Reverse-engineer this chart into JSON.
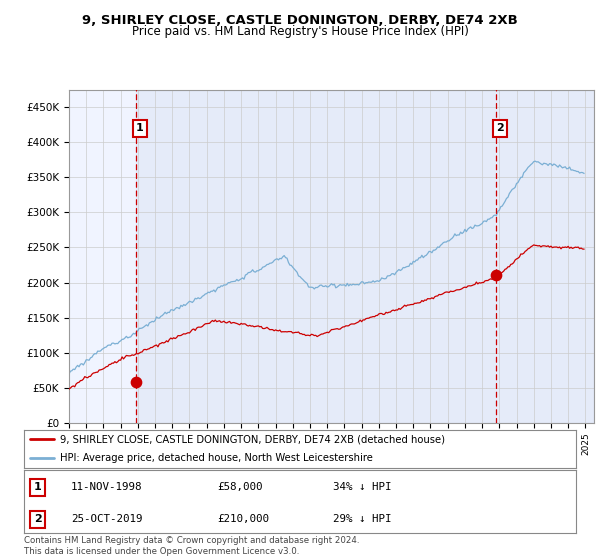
{
  "title1": "9, SHIRLEY CLOSE, CASTLE DONINGTON, DERBY, DE74 2XB",
  "title2": "Price paid vs. HM Land Registry's House Price Index (HPI)",
  "ylim": [
    0,
    475000
  ],
  "yticks": [
    0,
    50000,
    100000,
    150000,
    200000,
    250000,
    300000,
    350000,
    400000,
    450000
  ],
  "ytick_labels": [
    "£0",
    "£50K",
    "£100K",
    "£150K",
    "£200K",
    "£250K",
    "£300K",
    "£350K",
    "£400K",
    "£450K"
  ],
  "sale1_year": 1998.875,
  "sale1_price": 58000,
  "sale2_year": 2019.79,
  "sale2_price": 210000,
  "property_color": "#cc0000",
  "hpi_color": "#7bafd4",
  "vline_color": "#cc0000",
  "shade_color": "#ddeeff",
  "legend_property": "9, SHIRLEY CLOSE, CASTLE DONINGTON, DERBY, DE74 2XB (detached house)",
  "legend_hpi": "HPI: Average price, detached house, North West Leicestershire",
  "table_row1": [
    "1",
    "11-NOV-1998",
    "£58,000",
    "34% ↓ HPI"
  ],
  "table_row2": [
    "2",
    "25-OCT-2019",
    "£210,000",
    "29% ↓ HPI"
  ],
  "footnote": "Contains HM Land Registry data © Crown copyright and database right 2024.\nThis data is licensed under the Open Government Licence v3.0.",
  "bg_color": "#ffffff",
  "plot_bg_color": "#f0f4ff",
  "grid_color": "#cccccc"
}
